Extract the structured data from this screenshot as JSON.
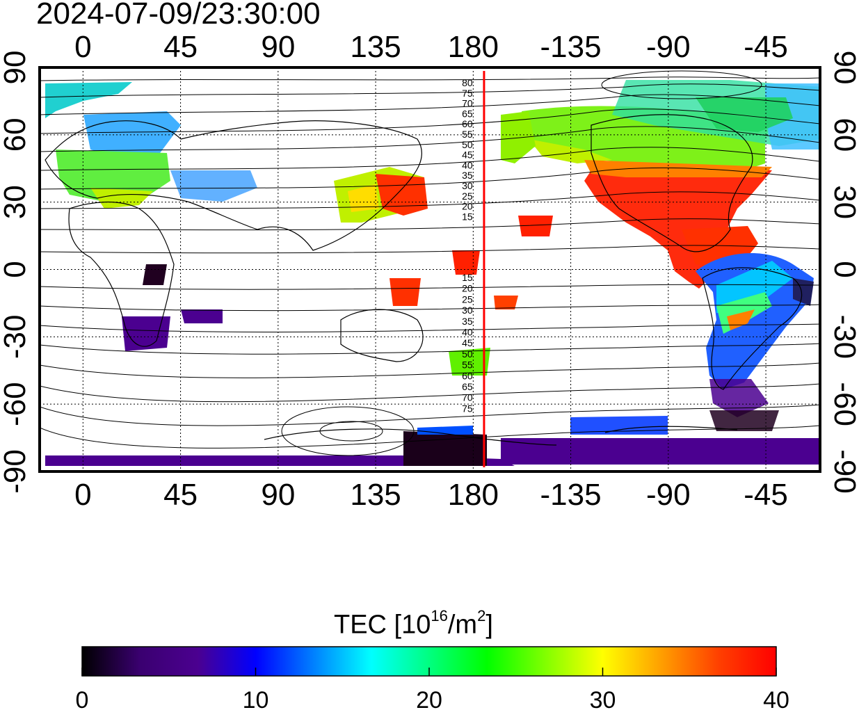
{
  "timestamp": "2024-07-09/23:30:00",
  "map": {
    "lon_ticks": [
      "0",
      "45",
      "90",
      "135",
      "180",
      "-135",
      "-90",
      "-45"
    ],
    "lat_ticks": [
      "90",
      "60",
      "30",
      "0",
      "-30",
      "-60",
      "-90"
    ],
    "lon_start_deg": -20,
    "lon_span_deg": 360,
    "marker_longitude_deg": 185,
    "marker_color": "#ff0000",
    "contour_labels_north": [
      "80",
      "75",
      "70",
      "65",
      "60",
      "55",
      "50",
      "45",
      "40",
      "35",
      "30",
      "25",
      "20",
      "15"
    ],
    "contour_labels_south": [
      "15",
      "20",
      "25",
      "30",
      "35",
      "40",
      "45",
      "50",
      "55",
      "60",
      "65",
      "70",
      "75"
    ]
  },
  "colorbar": {
    "title_main": "TEC  [10",
    "title_exp": "16",
    "title_unit": "/m",
    "title_sq": "2",
    "title_end": "]",
    "min": 0,
    "max": 40,
    "ticks": [
      "0",
      "10",
      "20",
      "30",
      "40"
    ],
    "colors": [
      "#000000",
      "#3a0070",
      "#4b0090",
      "#0000ff",
      "#0080ff",
      "#00ffff",
      "#00ff80",
      "#00ff00",
      "#80ff00",
      "#ffff00",
      "#ffa000",
      "#ff4000",
      "#ff0000"
    ]
  }
}
